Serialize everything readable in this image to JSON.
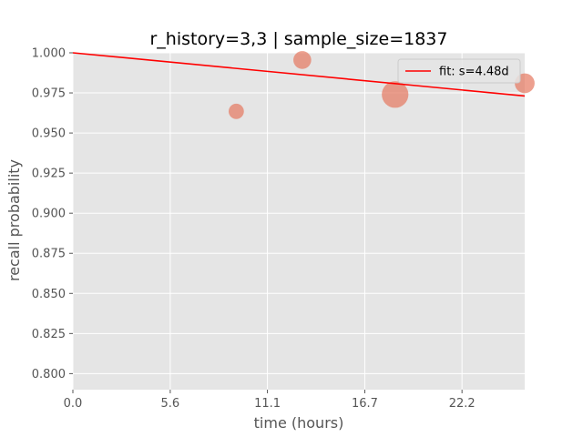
{
  "chart_data": {
    "type": "scatter",
    "title": "r_history=3,3 | sample_size=1837",
    "xlabel": "time (hours)",
    "ylabel": "recall probability",
    "xlim": [
      0,
      25.8
    ],
    "ylim": [
      0.79,
      1.0
    ],
    "x_ticks": [
      "0.0",
      "5.6",
      "11.1",
      "16.7",
      "22.2"
    ],
    "x_tick_values": [
      0,
      5.56,
      11.11,
      16.67,
      22.22
    ],
    "y_ticks": [
      "0.800",
      "0.825",
      "0.850",
      "0.875",
      "0.900",
      "0.925",
      "0.950",
      "0.975",
      "1.000"
    ],
    "y_tick_values": [
      0.8,
      0.825,
      0.85,
      0.875,
      0.9,
      0.925,
      0.95,
      0.975,
      1.0
    ],
    "grid": true,
    "legend_position": "top-right",
    "points": [
      {
        "x": 9.33,
        "y": 0.9635,
        "size": 1
      },
      {
        "x": 13.1,
        "y": 0.9955,
        "size": 2
      },
      {
        "x": 18.4,
        "y": 0.974,
        "size": 8
      },
      {
        "x": 25.8,
        "y": 0.981,
        "size": 3
      }
    ],
    "point_color": "#E5775F",
    "series": [
      {
        "name": "fit: s=4.48d",
        "x": [
          0,
          25.8
        ],
        "y": [
          1.0,
          0.9731
        ]
      }
    ],
    "fit_color": "#ff0000",
    "background": "#E5E5E5",
    "grid_color": "#ffffff"
  }
}
